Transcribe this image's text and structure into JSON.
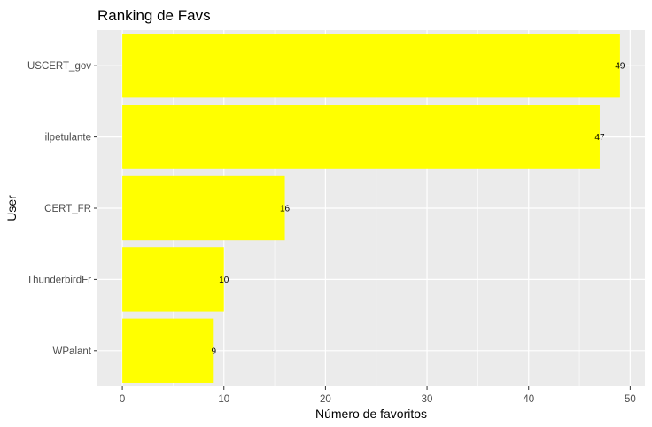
{
  "chart_data": {
    "type": "bar",
    "orientation": "horizontal",
    "title": "Ranking de Favs",
    "xlabel": "Número de favoritos",
    "ylabel": "User",
    "categories": [
      "USCERT_gov",
      "ilpetulante",
      "CERT_FR",
      "ThunderbirdFr",
      "WPalant"
    ],
    "values": [
      49,
      47,
      16,
      10,
      9
    ],
    "data_labels": [
      "49",
      "47",
      "16",
      "10",
      "9"
    ],
    "x_ticks": [
      0,
      10,
      20,
      30,
      40,
      50
    ],
    "xlim": [
      -2.45,
      51.45
    ],
    "grid": true,
    "bar_color": "#FFFF00",
    "panel_background": "#EBEBEB",
    "grid_color": "#FFFFFF"
  }
}
